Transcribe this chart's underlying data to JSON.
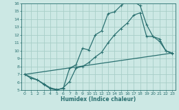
{
  "xlabel": "Humidex (Indice chaleur)",
  "xlim": [
    -0.5,
    23.5
  ],
  "ylim": [
    5,
    16
  ],
  "xticks": [
    0,
    1,
    2,
    3,
    4,
    5,
    6,
    7,
    8,
    9,
    10,
    11,
    12,
    13,
    14,
    15,
    16,
    17,
    18,
    19,
    20,
    21,
    22,
    23
  ],
  "yticks": [
    5,
    6,
    7,
    8,
    9,
    10,
    11,
    12,
    13,
    14,
    15,
    16
  ],
  "bg_color": "#cce8e4",
  "line_color": "#2a7070",
  "grid_color": "#a8cec8",
  "line1_x": [
    0,
    1,
    2,
    3,
    4,
    5,
    6,
    7,
    8,
    9,
    10,
    11,
    12,
    13,
    14,
    15,
    16,
    17,
    18,
    19,
    20,
    21,
    22,
    23
  ],
  "line1_y": [
    7.0,
    6.5,
    6.3,
    5.8,
    5.3,
    5.1,
    5.2,
    7.8,
    8.2,
    10.3,
    10.1,
    12.0,
    12.5,
    14.7,
    14.9,
    15.7,
    16.3,
    16.2,
    15.7,
    13.3,
    11.8,
    11.2,
    10.0,
    9.7
  ],
  "line2_x": [
    0,
    2,
    3,
    4,
    5,
    6,
    7,
    8,
    9,
    10,
    11,
    12,
    13,
    14,
    15,
    16,
    17,
    18,
    19,
    20,
    21,
    22,
    23
  ],
  "line2_y": [
    7.0,
    6.3,
    5.7,
    5.2,
    5.0,
    5.3,
    6.1,
    7.8,
    8.0,
    8.5,
    9.2,
    9.8,
    11.0,
    12.0,
    12.8,
    13.5,
    14.5,
    14.8,
    11.8,
    11.8,
    11.5,
    10.0,
    9.6
  ],
  "line3_x": [
    0,
    23
  ],
  "line3_y": [
    7.0,
    9.7
  ],
  "marker_size": 2.5,
  "line_width": 0.9
}
